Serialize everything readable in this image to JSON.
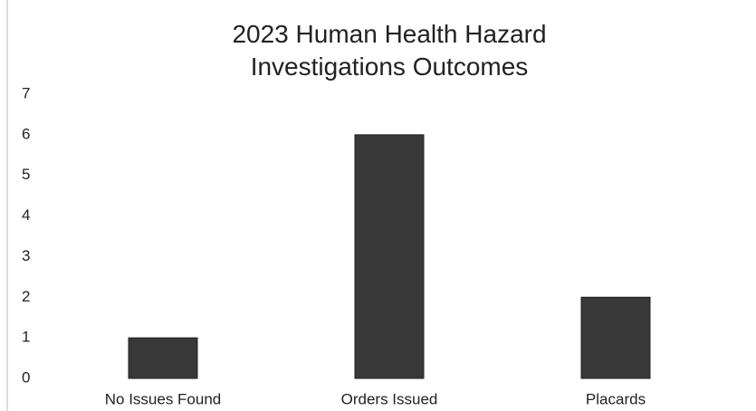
{
  "chart_data": {
    "type": "bar",
    "title": "2023 Human Health Hazard Investigations Outcomes",
    "categories": [
      "No Issues Found",
      "Orders Issued",
      "Placards"
    ],
    "values": [
      1,
      6,
      2
    ],
    "color": "#383838",
    "ylim": [
      0,
      7
    ],
    "yticks": [
      0,
      1,
      2,
      3,
      4,
      5,
      6,
      7
    ],
    "grid": false
  }
}
